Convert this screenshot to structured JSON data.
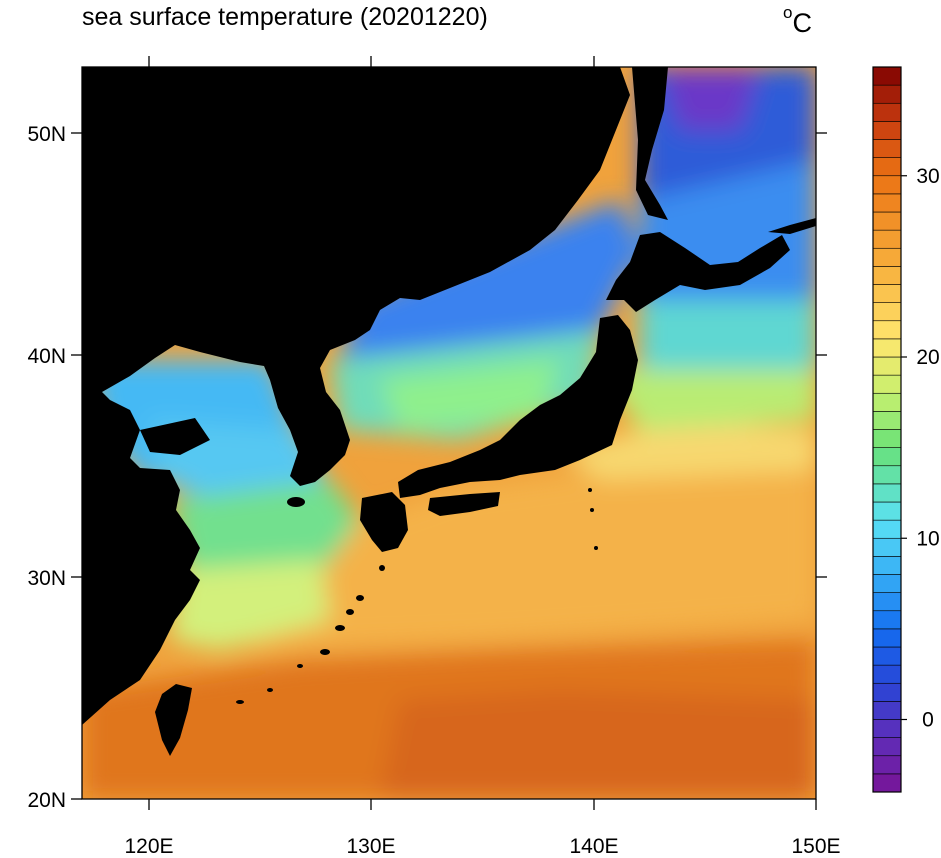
{
  "title": "sea surface temperature (20201220)",
  "units": {
    "symbol": "o",
    "letter": "C"
  },
  "map": {
    "region": "Japan and surrounding seas",
    "lon_range": [
      117,
      150
    ],
    "lat_range": [
      20,
      53
    ],
    "lon_ticks": [
      "120E",
      "130E",
      "140E",
      "150E"
    ],
    "lat_ticks": [
      "20N",
      "30N",
      "40N",
      "50N"
    ],
    "land_color": "#000000",
    "regions": [
      {
        "name": "sea-of-okhotsk-north",
        "temp_c": -1
      },
      {
        "name": "sea-of-okhotsk-south",
        "temp_c": 3
      },
      {
        "name": "kuril-pacific",
        "temp_c": 6
      },
      {
        "name": "sea-of-japan-north",
        "temp_c": 5
      },
      {
        "name": "sea-of-japan-south",
        "temp_c": 13
      },
      {
        "name": "bohai-yellow-sea",
        "temp_c": 9
      },
      {
        "name": "east-china-sea",
        "temp_c": 19
      },
      {
        "name": "kuroshio-east-of-japan",
        "temp_c": 22
      },
      {
        "name": "pacific-subtropical",
        "temp_c": 25
      },
      {
        "name": "philippine-sea",
        "temp_c": 27
      }
    ]
  },
  "colorbar": {
    "min": -4,
    "max": 36,
    "step": 1,
    "ticks": [
      {
        "value": 0,
        "label": "0"
      },
      {
        "value": 10,
        "label": "10"
      },
      {
        "value": 20,
        "label": "20"
      },
      {
        "value": 30,
        "label": "30"
      }
    ]
  },
  "colors": {
    "very_cold": "#7b1fa2",
    "cold": "#1e63df",
    "cool": "#43b6f5",
    "mild": "#6fe08f",
    "warm": "#f2e06a",
    "hot": "#e67a12",
    "extreme": "#8c0000"
  }
}
